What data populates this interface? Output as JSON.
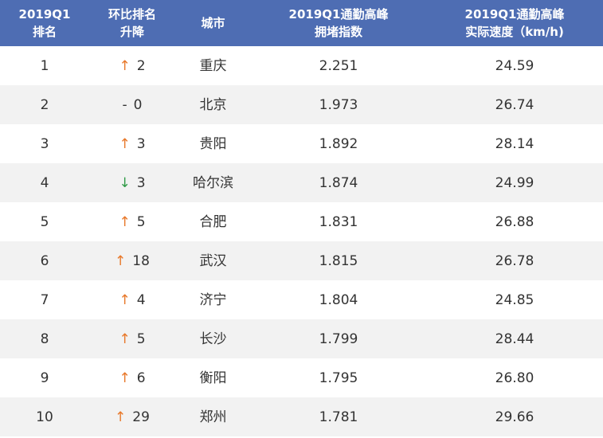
{
  "table": {
    "header": [
      [
        "2019Q1",
        "排名"
      ],
      [
        "环比排名",
        "升降"
      ],
      [
        "城市"
      ],
      [
        "2019Q1通勤高峰",
        "拥堵指数"
      ],
      [
        "2019Q1通勤高峰",
        "实际速度（km/h)"
      ]
    ],
    "rows": [
      [
        "1",
        "↑",
        "2",
        "重庆",
        "2.251",
        "24.59"
      ],
      [
        "2",
        "-",
        "0",
        "北京",
        "1.973",
        "26.74"
      ],
      [
        "3",
        "↑",
        "3",
        "贵阳",
        "1.892",
        "28.14"
      ],
      [
        "4",
        "↓",
        "3",
        "哈尔滨",
        "1.874",
        "24.99"
      ],
      [
        "5",
        "↑",
        "5",
        "合肥",
        "1.831",
        "26.88"
      ],
      [
        "6",
        "↑",
        "18",
        "武汉",
        "1.815",
        "26.78"
      ],
      [
        "7",
        "↑",
        "4",
        "济宁",
        "1.804",
        "24.85"
      ],
      [
        "8",
        "↑",
        "5",
        "长沙",
        "1.799",
        "28.44"
      ],
      [
        "9",
        "↑",
        "6",
        "衡阳",
        "1.795",
        "26.80"
      ],
      [
        "10",
        "↑",
        "29",
        "郑州",
        "1.781",
        "29.66"
      ]
    ]
  }
}
